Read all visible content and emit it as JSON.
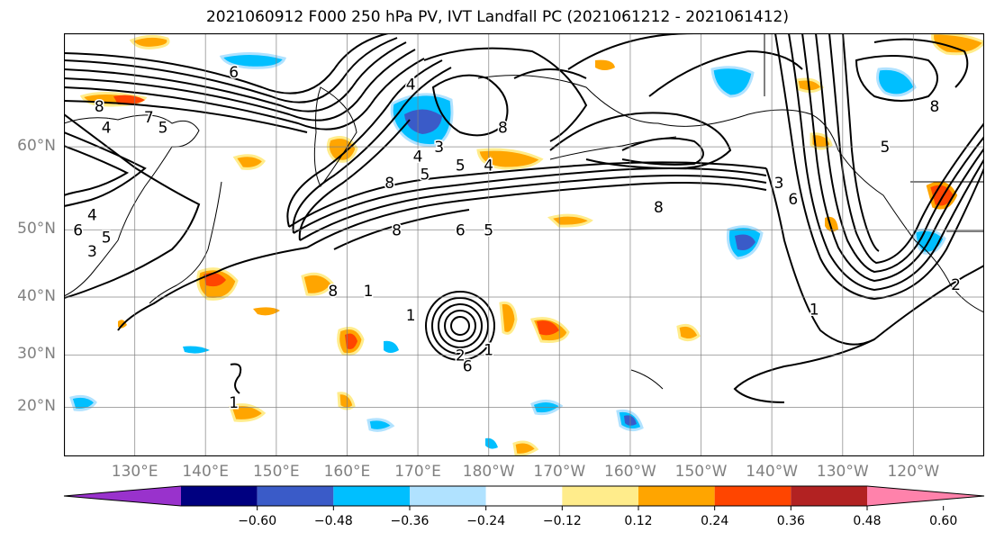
{
  "title": "2021060912 F000 250 hPa PV, IVT Landfall PC (2021061212 - 2021061412)",
  "lat_labels": [
    {
      "text": "60°N",
      "lat": 60
    },
    {
      "text": "50°N",
      "lat": 50
    },
    {
      "text": "40°N",
      "lat": 40
    },
    {
      "text": "30°N",
      "lat": 30
    },
    {
      "text": "20°N",
      "lat": 20
    }
  ],
  "lon_labels": [
    {
      "text": "130°E",
      "lon": 130
    },
    {
      "text": "140°E",
      "lon": 140
    },
    {
      "text": "150°E",
      "lon": 150
    },
    {
      "text": "160°E",
      "lon": 160
    },
    {
      "text": "170°E",
      "lon": 170
    },
    {
      "text": "180°W",
      "lon": 180
    },
    {
      "text": "170°W",
      "lon": 190
    },
    {
      "text": "160°W",
      "lon": 200
    },
    {
      "text": "150°W",
      "lon": 210
    },
    {
      "text": "140°W",
      "lon": 220
    },
    {
      "text": "130°W",
      "lon": 230
    },
    {
      "text": "120°W",
      "lon": 240
    }
  ],
  "map_extent": {
    "lon_min": 120,
    "lon_max": 250,
    "lat_min": 10,
    "lat_max": 70
  },
  "colorbar": {
    "colors": [
      "#9932CC",
      "#000080",
      "#3A5BC8",
      "#00BFFF",
      "#B0E2FF",
      "#FFFFFF",
      "#FFEC8B",
      "#FFA500",
      "#FF4500",
      "#B22222",
      "#FF82AB"
    ],
    "ticks": [
      "−0.60",
      "−0.48",
      "−0.36",
      "−0.24",
      "−0.12",
      "0.12",
      "0.24",
      "0.36",
      "0.48",
      "0.60"
    ]
  },
  "contour_labels": [
    {
      "text": "8",
      "lon": 125,
      "lat": 64
    },
    {
      "text": "7",
      "lon": 132,
      "lat": 63
    },
    {
      "text": "5",
      "lon": 134,
      "lat": 62
    },
    {
      "text": "4",
      "lon": 126,
      "lat": 62
    },
    {
      "text": "6",
      "lon": 144,
      "lat": 67
    },
    {
      "text": "4",
      "lon": 124,
      "lat": 52
    },
    {
      "text": "6",
      "lon": 122,
      "lat": 50
    },
    {
      "text": "5",
      "lon": 126,
      "lat": 49
    },
    {
      "text": "3",
      "lon": 124,
      "lat": 47
    },
    {
      "text": "4",
      "lon": 170,
      "lat": 59
    },
    {
      "text": "5",
      "lon": 171,
      "lat": 57
    },
    {
      "text": "8",
      "lon": 166,
      "lat": 56
    },
    {
      "text": "5",
      "lon": 176,
      "lat": 58
    },
    {
      "text": "3",
      "lon": 173,
      "lat": 60
    },
    {
      "text": "4",
      "lon": 180,
      "lat": 58
    },
    {
      "text": "8",
      "lon": 182,
      "lat": 62
    },
    {
      "text": "4",
      "lon": 169,
      "lat": 66
    },
    {
      "text": "8",
      "lon": 167,
      "lat": 50
    },
    {
      "text": "6",
      "lon": 176,
      "lat": 50
    },
    {
      "text": "5",
      "lon": 180,
      "lat": 50
    },
    {
      "text": "8",
      "lon": 158,
      "lat": 41
    },
    {
      "text": "1",
      "lon": 163,
      "lat": 41
    },
    {
      "text": "1",
      "lon": 169,
      "lat": 37
    },
    {
      "text": "8",
      "lon": 204,
      "lat": 53
    },
    {
      "text": "3",
      "lon": 221,
      "lat": 56
    },
    {
      "text": "6",
      "lon": 223,
      "lat": 54
    },
    {
      "text": "8",
      "lon": 243,
      "lat": 64
    },
    {
      "text": "5",
      "lon": 236,
      "lat": 60
    },
    {
      "text": "1",
      "lon": 226,
      "lat": 38
    },
    {
      "text": "2",
      "lon": 246,
      "lat": 42
    },
    {
      "text": "1",
      "lon": 180,
      "lat": 31
    },
    {
      "text": "2",
      "lon": 176,
      "lat": 30
    },
    {
      "text": "6",
      "lon": 177,
      "lat": 28
    },
    {
      "text": "1",
      "lon": 144,
      "lat": 21
    }
  ]
}
